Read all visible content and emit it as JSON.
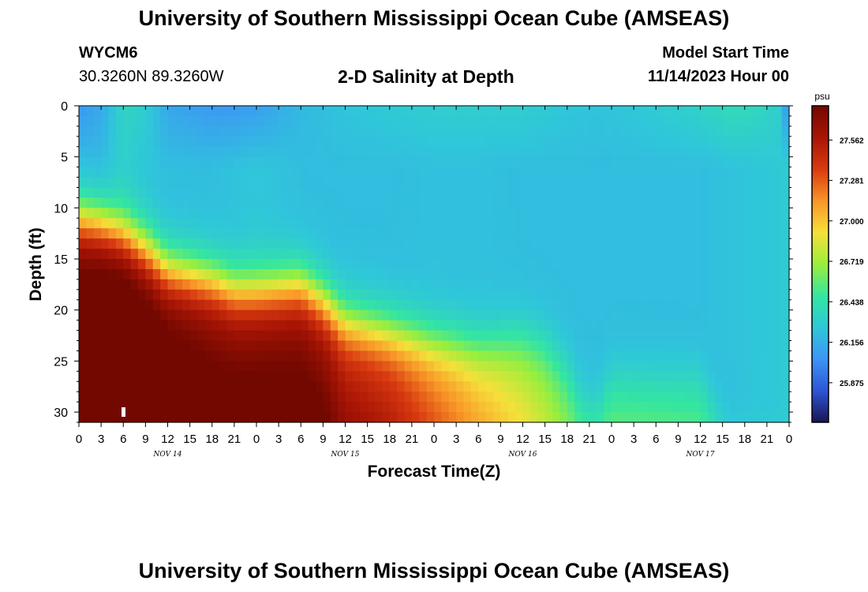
{
  "page": {
    "title": "University of Southern Mississippi Ocean Cube (AMSEAS)",
    "station_id": "WYCM6",
    "coordinates": "30.3260N  89.3260W",
    "subtitle": "2-D Salinity at Depth",
    "model_start_label": "Model Start Time",
    "model_start_value": "11/14/2023 Hour 00",
    "footer_title": "University of Southern Mississippi Ocean Cube (AMSEAS)"
  },
  "chart_data": {
    "type": "heatmap",
    "title": "2-D Salinity at Depth",
    "xlabel": "Forecast Time(Z)",
    "ylabel": "Depth (ft)",
    "xlim": [
      0,
      96
    ],
    "ylim": [
      0,
      31
    ],
    "y_inverted": true,
    "x_tick_values": [
      0,
      3,
      6,
      9,
      12,
      15,
      18,
      21,
      24,
      27,
      30,
      33,
      36,
      39,
      42,
      45,
      48,
      51,
      54,
      57,
      60,
      63,
      66,
      69,
      72,
      75,
      78,
      81,
      84,
      87,
      90,
      93,
      96
    ],
    "x_tick_labels": [
      "0",
      "3",
      "6",
      "9",
      "12",
      "15",
      "18",
      "21",
      "0",
      "3",
      "6",
      "9",
      "12",
      "15",
      "18",
      "21",
      "0",
      "3",
      "6",
      "9",
      "12",
      "15",
      "18",
      "21",
      "0",
      "3",
      "6",
      "9",
      "12",
      "15",
      "18",
      "21",
      "0"
    ],
    "y_ticks": [
      0,
      5,
      10,
      15,
      20,
      25,
      30
    ],
    "date_labels": [
      {
        "x": 12,
        "text": "NOV 14"
      },
      {
        "x": 36,
        "text": "NOV 15"
      },
      {
        "x": 60,
        "text": "NOV 16"
      },
      {
        "x": 84,
        "text": "NOV 17"
      }
    ],
    "colorbar": {
      "unit": "psu",
      "min": 25.6,
      "max": 27.8,
      "ticks": [
        27.562,
        27.281,
        27.0,
        26.719,
        26.438,
        26.156,
        25.875
      ],
      "colors": [
        "#1a1452",
        "#2c56d6",
        "#3d95f5",
        "#2fc7d9",
        "#34e6a0",
        "#9bee3c",
        "#f6e03a",
        "#f89528",
        "#d83a10",
        "#a81505",
        "#720800"
      ]
    },
    "time_hours": [
      0,
      3,
      6,
      9,
      12,
      18,
      21,
      24,
      30,
      33,
      36,
      42,
      48,
      54,
      60,
      63,
      66,
      68,
      70,
      72,
      84,
      88,
      92,
      95,
      96
    ],
    "halocline_depth_ft": [
      11,
      11.5,
      12.5,
      14,
      16,
      17,
      18,
      18,
      17.5,
      19,
      21,
      22,
      23,
      23.5,
      22.5,
      23,
      25,
      28,
      29,
      26,
      26,
      31,
      31,
      31,
      31
    ],
    "surface_salinity_psu": [
      26.05,
      26.12,
      26.35,
      26.3,
      26.12,
      26.06,
      26.06,
      26.08,
      26.2,
      26.22,
      26.25,
      26.28,
      26.3,
      26.3,
      26.3,
      26.28,
      26.26,
      26.25,
      26.24,
      26.25,
      26.33,
      26.4,
      26.36,
      26.3,
      25.9
    ],
    "upper_salinity_psu": [
      26.2,
      26.2,
      26.3,
      26.25,
      26.22,
      26.22,
      26.24,
      26.26,
      26.22,
      26.22,
      26.22,
      26.22,
      26.23,
      26.23,
      26.22,
      26.22,
      26.22,
      26.22,
      26.22,
      26.22,
      26.22,
      26.24,
      26.26,
      26.28,
      26.3
    ],
    "bottom_salinity_psu": [
      27.72,
      27.75,
      27.78,
      27.72,
      27.68,
      27.6,
      27.6,
      27.6,
      27.6,
      27.55,
      27.4,
      27.3,
      27.1,
      26.9,
      26.7,
      26.6,
      26.5,
      26.45,
      26.45,
      26.45,
      26.42,
      26.3,
      26.3,
      26.3,
      26.3
    ]
  }
}
